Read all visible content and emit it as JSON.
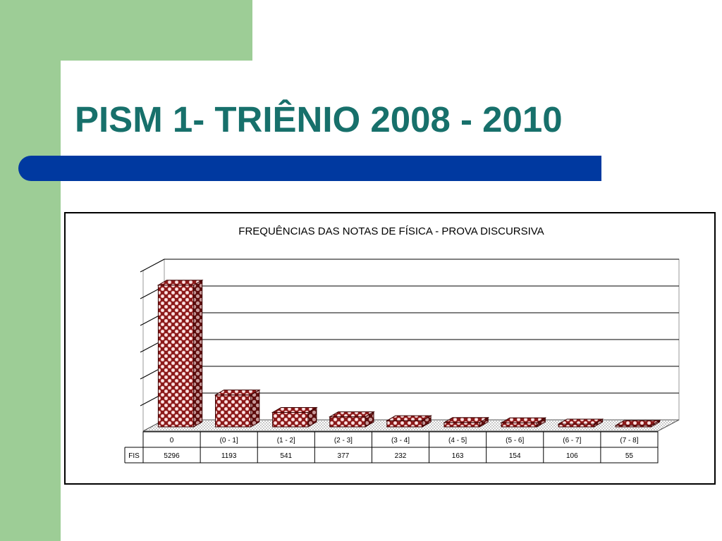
{
  "slide": {
    "title": "PISM 1- TRIÊNIO 2008 - 2010",
    "colors": {
      "title": "#17706b",
      "accent_bar": "#0039a0",
      "side_strip": "#9dcd96",
      "bar_fill": "#8b1a1a",
      "bar_pattern": "#f2c6c6"
    }
  },
  "chart_data": {
    "type": "bar",
    "title": "FREQUÊNCIAS DAS NOTAS DE FÍSICA - PROVA DISCURSIVA",
    "categories": [
      "0",
      "(0 - 1]",
      "(1 - 2]",
      "(2 - 3]",
      "(3 - 4]",
      "(4 - 5]",
      "(5 - 6]",
      "(6 - 7]",
      "(7 - 8]"
    ],
    "series": [
      {
        "name": "FIS",
        "values": [
          5296,
          1193,
          541,
          377,
          232,
          163,
          154,
          106,
          55
        ]
      }
    ],
    "value_labels": [
      "5296",
      "1193",
      "541",
      "377",
      "232",
      "163",
      "154",
      "106",
      "55"
    ],
    "ylim": [
      0,
      6000
    ],
    "grid": true,
    "three_d": true,
    "legend": "data-table"
  }
}
